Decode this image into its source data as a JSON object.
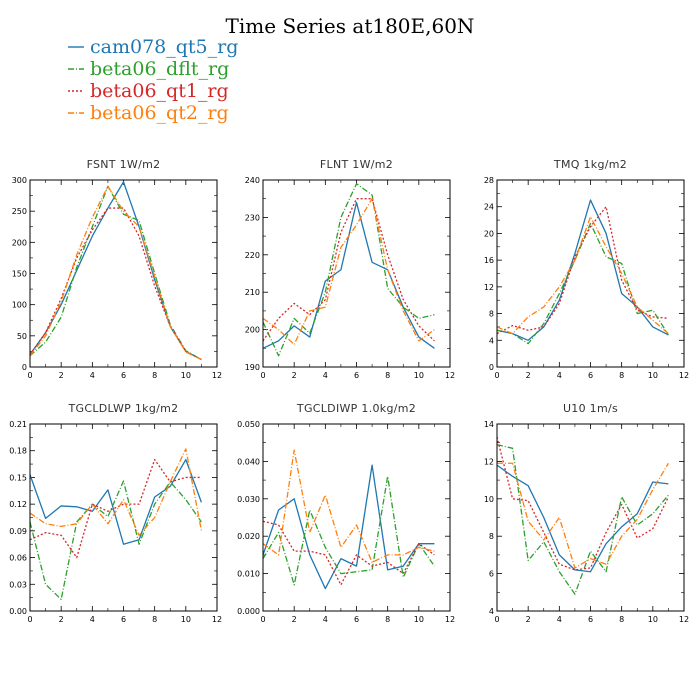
{
  "title": "Time Series at180E,60N",
  "colors": {
    "cam078_qt5_rg": "#1f77b4",
    "beta06_dflt_rg": "#2ca02c",
    "beta06_qt1_rg": "#d62728",
    "beta06_qt2_rg": "#ff7f0e"
  },
  "legend": [
    {
      "name": "cam078_qt5_rg",
      "color": "#1f77b4",
      "style": "solid"
    },
    {
      "name": "beta06_dflt_rg",
      "color": "#2ca02c",
      "style": "dashdot"
    },
    {
      "name": "beta06_qt1_rg",
      "color": "#d62728",
      "style": "dotted"
    },
    {
      "name": "beta06_qt2_rg",
      "color": "#ff7f0e",
      "style": "dashdot"
    }
  ],
  "chart_data": [
    {
      "type": "line",
      "title": "FSNT   1W/m2",
      "x": [
        0,
        1,
        2,
        3,
        4,
        5,
        6,
        7,
        8,
        9,
        10,
        11
      ],
      "xlim": [
        0,
        12
      ],
      "xticks": [
        "0",
        "2",
        "4",
        "6",
        "8",
        "10",
        "12"
      ],
      "ylim": [
        0,
        300
      ],
      "yticks": [
        "0",
        "50",
        "100",
        "150",
        "200",
        "250",
        "300"
      ],
      "series": [
        {
          "name": "cam078_qt5_rg",
          "values": [
            20,
            55,
            100,
            155,
            210,
            255,
            297,
            225,
            140,
            65,
            25,
            12
          ]
        },
        {
          "name": "beta06_dflt_rg",
          "values": [
            18,
            40,
            80,
            160,
            225,
            290,
            245,
            235,
            150,
            68,
            26,
            12
          ]
        },
        {
          "name": "beta06_qt1_rg",
          "values": [
            20,
            55,
            110,
            175,
            220,
            255,
            255,
            210,
            130,
            65,
            25,
            12
          ]
        },
        {
          "name": "beta06_qt2_rg",
          "values": [
            18,
            50,
            105,
            180,
            240,
            290,
            250,
            225,
            145,
            65,
            24,
            12
          ]
        }
      ]
    },
    {
      "type": "line",
      "title": "FLNT   1W/m2",
      "x": [
        0,
        1,
        2,
        3,
        4,
        5,
        6,
        7,
        8,
        9,
        10,
        11
      ],
      "xlim": [
        0,
        12
      ],
      "xticks": [
        "0",
        "2",
        "4",
        "6",
        "8",
        "10",
        "12"
      ],
      "ylim": [
        190,
        240
      ],
      "yticks": [
        "190",
        "200",
        "210",
        "220",
        "230",
        "240"
      ],
      "series": [
        {
          "name": "cam078_qt5_rg",
          "values": [
            195,
            197,
            201,
            198,
            213,
            216,
            234,
            218,
            216,
            206,
            198,
            195
          ]
        },
        {
          "name": "beta06_dflt_rg",
          "values": [
            202,
            193,
            203,
            199,
            210,
            230,
            239,
            236,
            211,
            206,
            203,
            204
          ]
        },
        {
          "name": "beta06_qt1_rg",
          "values": [
            197,
            203,
            207,
            204,
            208,
            226,
            235,
            235,
            220,
            208,
            201,
            197
          ]
        },
        {
          "name": "beta06_qt2_rg",
          "values": [
            203,
            200,
            196,
            205,
            206,
            222,
            228,
            235,
            216,
            205,
            197,
            200
          ]
        }
      ]
    },
    {
      "type": "line",
      "title": "TMQ   1kg/m2",
      "x": [
        0,
        1,
        2,
        3,
        4,
        5,
        6,
        7,
        8,
        9,
        10,
        11
      ],
      "xlim": [
        0,
        12
      ],
      "xticks": [
        "0",
        "2",
        "4",
        "6",
        "8",
        "10",
        "12"
      ],
      "ylim": [
        0,
        28
      ],
      "yticks": [
        "0",
        "4",
        "8",
        "12",
        "16",
        "20",
        "24",
        "28"
      ],
      "series": [
        {
          "name": "cam078_qt5_rg",
          "values": [
            5.5,
            5.0,
            4.0,
            6.0,
            10.0,
            17.0,
            25.0,
            20.0,
            11.0,
            9.0,
            6.0,
            4.8
          ]
        },
        {
          "name": "beta06_dflt_rg",
          "values": [
            5.5,
            5.0,
            3.5,
            6.5,
            11.0,
            16.0,
            21.5,
            16.5,
            15.5,
            8.0,
            8.5,
            4.8
          ]
        },
        {
          "name": "beta06_qt1_rg",
          "values": [
            5.0,
            6.2,
            5.5,
            6.0,
            9.5,
            16.5,
            21.0,
            24.0,
            13.0,
            8.5,
            7.5,
            7.3
          ]
        },
        {
          "name": "beta06_qt2_rg",
          "values": [
            6.0,
            5.0,
            7.5,
            9.0,
            12.0,
            16.0,
            22.5,
            18.0,
            14.0,
            9.0,
            7.0,
            5.0
          ]
        }
      ]
    },
    {
      "type": "line",
      "title": "TGCLDLWP   1kg/m2",
      "x": [
        0,
        1,
        2,
        3,
        4,
        5,
        6,
        7,
        8,
        9,
        10,
        11
      ],
      "xlim": [
        0,
        12
      ],
      "xticks": [
        "0",
        "2",
        "4",
        "6",
        "8",
        "10",
        "12"
      ],
      "ylim": [
        0,
        0.21
      ],
      "yticks": [
        "0.00",
        "0.03",
        "0.06",
        "0.09",
        "0.12",
        "0.15",
        "0.18",
        "0.21"
      ],
      "series": [
        {
          "name": "cam078_qt5_rg",
          "values": [
            0.153,
            0.104,
            0.118,
            0.117,
            0.112,
            0.136,
            0.075,
            0.08,
            0.128,
            0.14,
            0.17,
            0.122
          ]
        },
        {
          "name": "beta06_dflt_rg",
          "values": [
            0.1,
            0.03,
            0.013,
            0.1,
            0.12,
            0.106,
            0.146,
            0.075,
            0.12,
            0.145,
            0.125,
            0.1
          ]
        },
        {
          "name": "beta06_qt1_rg",
          "values": [
            0.08,
            0.088,
            0.085,
            0.06,
            0.12,
            0.112,
            0.12,
            0.12,
            0.17,
            0.145,
            0.15,
            0.15
          ]
        },
        {
          "name": "beta06_qt2_rg",
          "values": [
            0.11,
            0.098,
            0.095,
            0.098,
            0.12,
            0.098,
            0.125,
            0.085,
            0.105,
            0.145,
            0.182,
            0.09
          ]
        }
      ]
    },
    {
      "type": "line",
      "title": "TGCLDIWP   1.0kg/m2",
      "x": [
        0,
        1,
        2,
        3,
        4,
        5,
        6,
        7,
        8,
        9,
        10,
        11
      ],
      "xlim": [
        0,
        12
      ],
      "xticks": [
        "0",
        "2",
        "4",
        "6",
        "8",
        "10",
        "12"
      ],
      "ylim": [
        0,
        0.05
      ],
      "yticks": [
        "0.000",
        "0.010",
        "0.020",
        "0.030",
        "0.040",
        "0.050"
      ],
      "series": [
        {
          "name": "cam078_qt5_rg",
          "values": [
            0.015,
            0.027,
            0.03,
            0.015,
            0.006,
            0.014,
            0.012,
            0.039,
            0.011,
            0.012,
            0.018,
            0.018
          ]
        },
        {
          "name": "beta06_dflt_rg",
          "values": [
            0.014,
            0.021,
            0.007,
            0.027,
            0.017,
            0.01,
            0.0105,
            0.011,
            0.036,
            0.009,
            0.018,
            0.012
          ]
        },
        {
          "name": "beta06_qt1_rg",
          "values": [
            0.024,
            0.023,
            0.016,
            0.016,
            0.015,
            0.007,
            0.015,
            0.012,
            0.013,
            0.01,
            0.018,
            0.015
          ]
        },
        {
          "name": "beta06_qt2_rg",
          "values": [
            0.018,
            0.015,
            0.043,
            0.021,
            0.031,
            0.017,
            0.023,
            0.013,
            0.015,
            0.015,
            0.017,
            0.016
          ]
        }
      ]
    },
    {
      "type": "line",
      "title": "U10   1m/s",
      "x": [
        0,
        1,
        2,
        3,
        4,
        5,
        6,
        7,
        8,
        9,
        10,
        11
      ],
      "xlim": [
        0,
        12
      ],
      "xticks": [
        "0",
        "2",
        "4",
        "6",
        "8",
        "10",
        "12"
      ],
      "ylim": [
        4,
        14
      ],
      "yticks": [
        "4",
        "6",
        "8",
        "10",
        "12",
        "14"
      ],
      "series": [
        {
          "name": "cam078_qt5_rg",
          "values": [
            11.8,
            11.2,
            10.7,
            9.0,
            7.0,
            6.2,
            6.1,
            7.6,
            8.5,
            9.2,
            10.9,
            10.8
          ]
        },
        {
          "name": "beta06_dflt_rg",
          "values": [
            12.9,
            12.7,
            6.7,
            7.7,
            6.1,
            4.9,
            7.2,
            6.1,
            10.1,
            8.6,
            9.2,
            10.2
          ]
        },
        {
          "name": "beta06_qt1_rg",
          "values": [
            13.3,
            10.0,
            9.9,
            8.2,
            6.5,
            6.2,
            6.3,
            8.2,
            9.7,
            7.9,
            8.4,
            10.1
          ]
        },
        {
          "name": "beta06_qt2_rg",
          "values": [
            11.9,
            11.9,
            8.8,
            7.8,
            9.0,
            6.3,
            6.8,
            6.5,
            8.0,
            8.9,
            10.5,
            11.9
          ]
        }
      ]
    }
  ]
}
